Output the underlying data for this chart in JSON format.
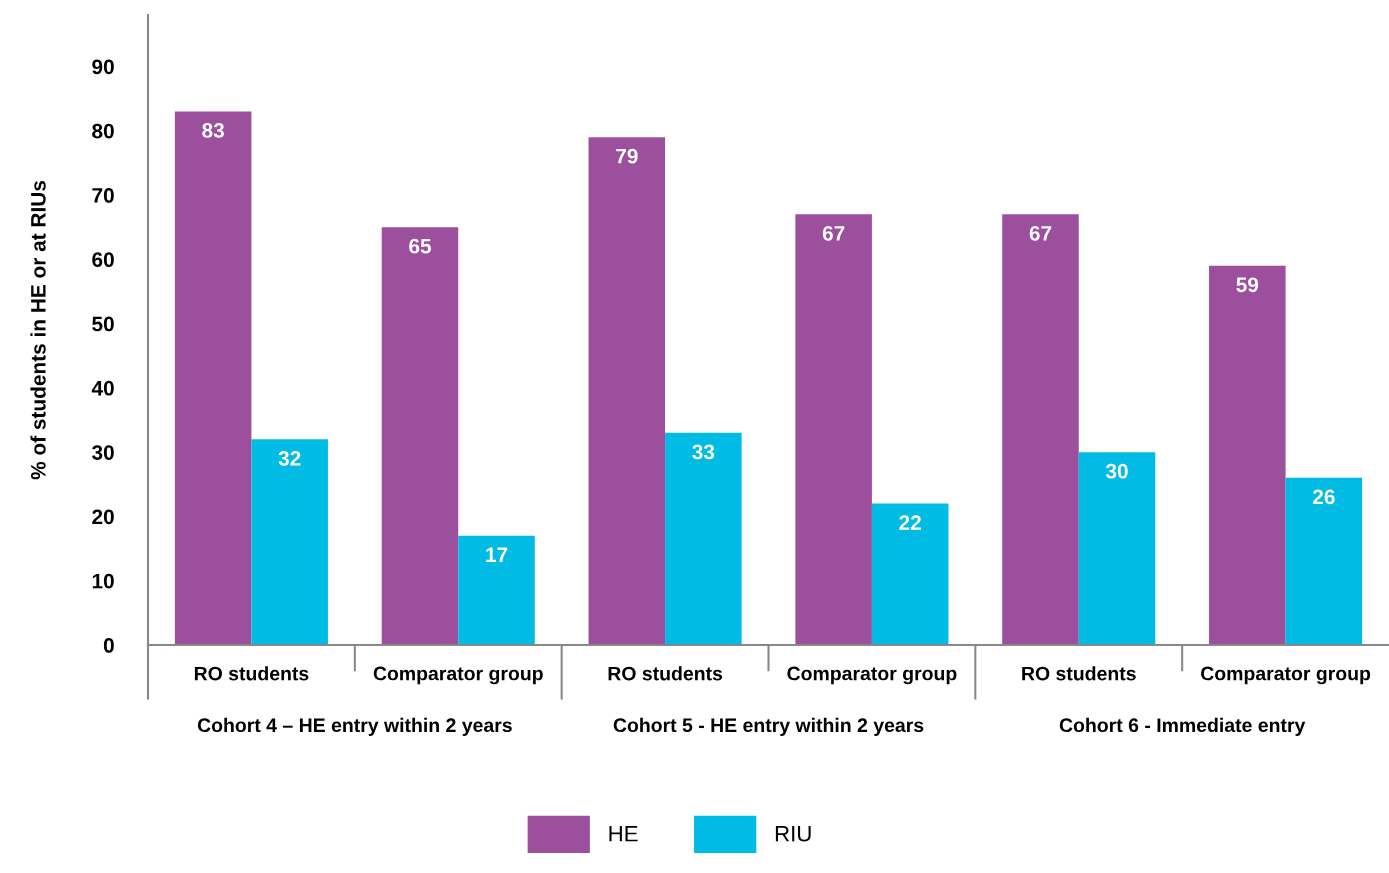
{
  "chart_data": {
    "type": "bar",
    "ylabel": "% of students in HE or at RIUs",
    "categories": [
      "RO students",
      "Comparator group",
      "RO students",
      "Comparator group",
      "RO students",
      "Comparator group"
    ],
    "series": [
      {
        "name": "HE",
        "color": "#9b4f9c",
        "values": [
          83,
          65,
          79,
          67,
          67,
          59
        ]
      },
      {
        "name": "RIU",
        "color": "#00bbe3",
        "values": [
          32,
          17,
          33,
          22,
          30,
          26
        ]
      }
    ],
    "annotations": [
      "Cohort 4 – HE entry within 2 years",
      "Cohort 5 - HE entry within 2 years",
      "Cohort 6 - Immediate entry"
    ],
    "ylim": [
      0,
      98
    ],
    "yticks": [
      0,
      10,
      20,
      30,
      40,
      50,
      60,
      70,
      80,
      90
    ],
    "data_labels": true,
    "grid": false,
    "legend": "bottom"
  }
}
